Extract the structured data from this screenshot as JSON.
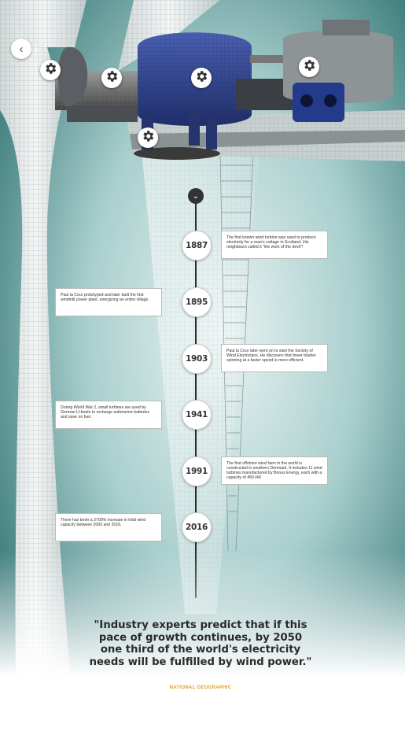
{
  "nav": {
    "back_icon": "chevron-left-icon",
    "back_glyph": "‹",
    "down_icon": "chevron-down-icon",
    "down_glyph": "⌄"
  },
  "colors": {
    "background_teal": "#2f6f6f",
    "motor_blue": "#2a3c80",
    "accent_gold": "#e0a020"
  },
  "hotspots": [
    {
      "icon": "gear-icon"
    },
    {
      "icon": "gear-icon"
    },
    {
      "icon": "gear-icon"
    },
    {
      "icon": "gear-icon"
    },
    {
      "icon": "gear-icon"
    }
  ],
  "timeline": [
    {
      "year": "1887",
      "side": "right",
      "text": "The first known wind turbine was used to produce electricity for a man's cottage in Scotland. His neighbours called it \"the work of the devil\"!"
    },
    {
      "year": "1895",
      "side": "left",
      "text": "Paul la Cour prototyped and later built the first windmill power plant, energizing an entire village."
    },
    {
      "year": "1903",
      "side": "right",
      "text": "Paul la Cour later went on to start the Society of Wind Electricians. He discovers that fewer blades spinning at a faster speed is more efficient."
    },
    {
      "year": "1941",
      "side": "left",
      "text": "During World War 2, small turbines are used by German U-boats to recharge submarine batteries and save on fuel."
    },
    {
      "year": "1991",
      "side": "right",
      "text": "The first offshore wind farm in the world is constructed in southern Denmark. It includes 11 wind turbines manufactured by Bonus Energy, each with a capacity of 450 kW."
    },
    {
      "year": "2016",
      "side": "left",
      "text": "There has been a 2700% increase in total wind capacity between 2000 and 2016."
    }
  ],
  "quote": "\"Industry experts predict that if this pace of growth continues, by 2050 one third of the world's electricity needs will be fulfilled by wind power.\"",
  "source": "NATIONAL GEOGRAPHIC"
}
